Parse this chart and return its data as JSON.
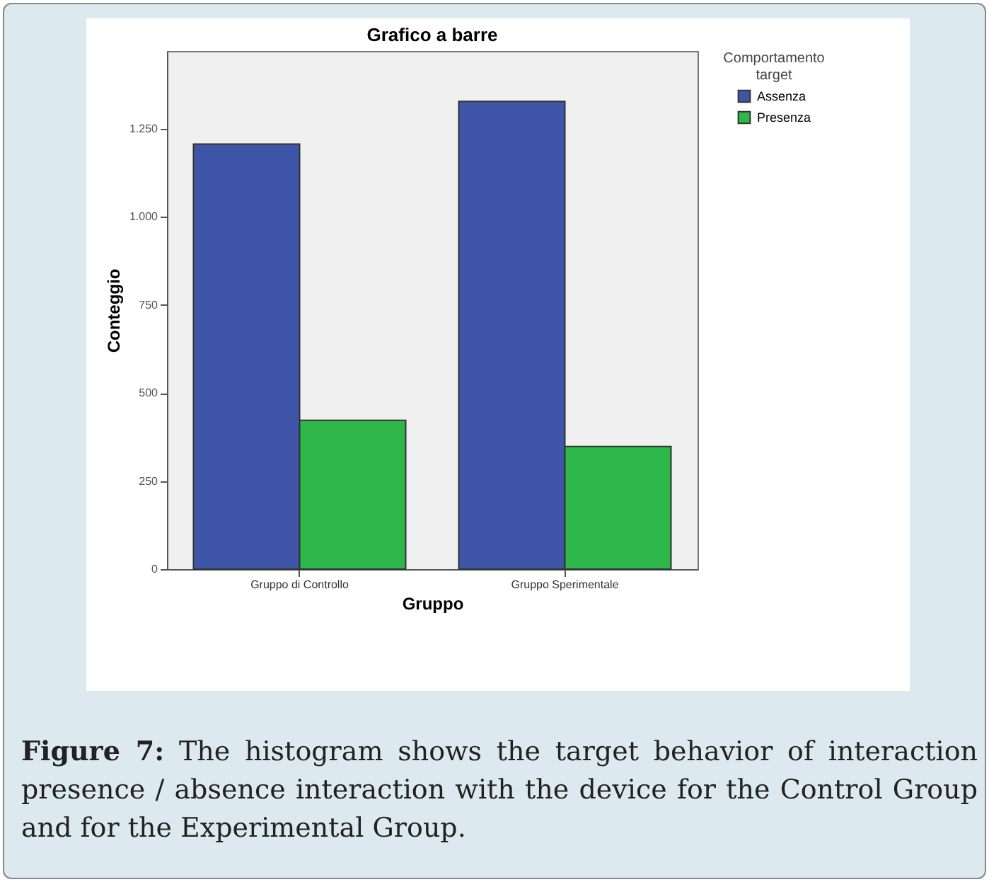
{
  "chart_data": {
    "type": "bar",
    "title": "Grafico a barre",
    "xlabel": "Gruppo",
    "ylabel": "Conteggio",
    "legend_title": "Comportamento target",
    "categories": [
      "Gruppo di Controllo",
      "Gruppo Sperimentale"
    ],
    "series": [
      {
        "name": "Assenza",
        "color": "#3f56a8",
        "values": [
          1206,
          1327
        ]
      },
      {
        "name": "Presenza",
        "color": "#2fb84a",
        "values": [
          422,
          348
        ]
      }
    ],
    "ylim": [
      0,
      1470
    ],
    "yticks": [
      0,
      250,
      500,
      750,
      {
        "value": 1000,
        "label": "1.000"
      },
      {
        "value": 1250,
        "label": "1.250"
      }
    ],
    "grid": false,
    "legend": "top right",
    "annotations": [
      "Figure 7: The histogram shows the target behavior of interaction presence / absence interaction with the device for the Control Group and for the Experimental Group."
    ]
  }
}
